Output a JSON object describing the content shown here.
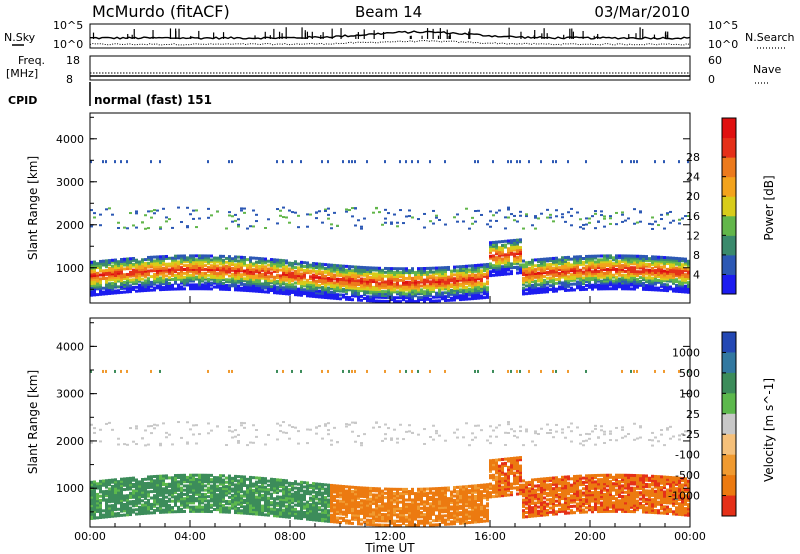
{
  "header": {
    "station": "McMurdo (fitACF)",
    "beam": "Beam 14",
    "date": "03/Mar/2010"
  },
  "strip": {
    "nsky_label": "N.Sky",
    "nsearch_label": "N.Search",
    "freq_label_1": "Freq.",
    "freq_label_2": "[MHz]",
    "nave_label": "Nave",
    "cpid_label": "CPID",
    "cpid_value": "normal (fast) 151",
    "noise_ticks_left": [
      "10^5",
      "10^0"
    ],
    "noise_ticks_right": [
      "10^5",
      "10^0"
    ],
    "freq_ticks": [
      "18",
      "8"
    ],
    "nave_ticks": [
      "60",
      "0"
    ]
  },
  "chart_data": [
    {
      "type": "heatmap",
      "name": "power",
      "ylabel": "Slant Range [km]",
      "xlabel": "",
      "ylim": [
        180,
        4600
      ],
      "yticks": [
        "1000",
        "2000",
        "3000",
        "4000"
      ],
      "colorbar_label": "Power [dB]",
      "colorbar_ticks": [
        "4",
        "8",
        "12",
        "16",
        "20",
        "24",
        "28"
      ],
      "colorbar_colors": [
        "#1c1cf0",
        "#2c58b4",
        "#3a8a6c",
        "#62b64a",
        "#d8cc1a",
        "#f3a31c",
        "#ec7a1c",
        "#e53019",
        "#e01010"
      ]
    },
    {
      "type": "heatmap",
      "name": "velocity",
      "ylabel": "Slant Range [km]",
      "xlabel": "Time UT",
      "ylim": [
        180,
        4600
      ],
      "yticks": [
        "1000",
        "2000",
        "3000",
        "4000"
      ],
      "xticks": [
        "00:00",
        "04:00",
        "08:00",
        "12:00",
        "16:00",
        "20:00",
        "00:00"
      ],
      "colorbar_label": "Velocity [m s^-1]",
      "colorbar_ticks": [
        "1000",
        "500",
        "100",
        "25",
        "-25",
        "-100",
        "-500",
        "-1000"
      ],
      "colorbar_colors": [
        "#2448b4",
        "#3278a0",
        "#3c8c5a",
        "#5cb84c",
        "#c8c8c8",
        "#f5c07a",
        "#f09a30",
        "#ec7a10",
        "#e53018"
      ]
    }
  ]
}
